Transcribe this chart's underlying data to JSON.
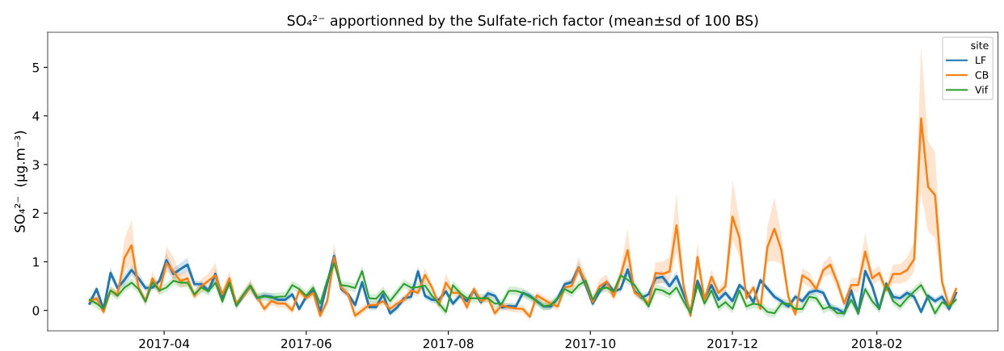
{
  "chart_data": {
    "type": "line",
    "title": "SO₄²⁻ apportionned by the Sulfate-rich factor (mean±sd of 100 BS)",
    "ylabel": "SO₄²⁻  (µg.m⁻³)",
    "legend_title": "site",
    "legend": "top right",
    "grid": false,
    "xlim": [
      "2017-02-10",
      "2018-03-25"
    ],
    "xticks": [
      "2017-04",
      "2017-06",
      "2017-08",
      "2017-10",
      "2017-12",
      "2018-02"
    ],
    "ylim": [
      -0.42,
      5.72
    ],
    "yticks": [
      0,
      1,
      2,
      3,
      4,
      5
    ],
    "x": [
      "2017-02-28",
      "2017-03-03",
      "2017-03-06",
      "2017-03-09",
      "2017-03-12",
      "2017-03-15",
      "2017-03-18",
      "2017-03-21",
      "2017-03-24",
      "2017-03-27",
      "2017-03-30",
      "2017-04-02",
      "2017-04-05",
      "2017-04-08",
      "2017-04-11",
      "2017-04-14",
      "2017-04-17",
      "2017-04-20",
      "2017-04-23",
      "2017-04-26",
      "2017-04-29",
      "2017-05-02",
      "2017-05-05",
      "2017-05-08",
      "2017-05-11",
      "2017-05-14",
      "2017-05-17",
      "2017-05-20",
      "2017-05-23",
      "2017-05-26",
      "2017-05-29",
      "2017-06-01",
      "2017-06-04",
      "2017-06-07",
      "2017-06-10",
      "2017-06-13",
      "2017-06-16",
      "2017-06-19",
      "2017-06-22",
      "2017-06-25",
      "2017-06-28",
      "2017-07-01",
      "2017-07-04",
      "2017-07-07",
      "2017-07-10",
      "2017-07-13",
      "2017-07-16",
      "2017-07-19",
      "2017-07-22",
      "2017-07-25",
      "2017-07-28",
      "2017-07-31",
      "2017-08-03",
      "2017-08-06",
      "2017-08-09",
      "2017-08-12",
      "2017-08-15",
      "2017-08-18",
      "2017-08-21",
      "2017-08-24",
      "2017-08-27",
      "2017-08-30",
      "2017-09-02",
      "2017-09-05",
      "2017-09-08",
      "2017-09-11",
      "2017-09-14",
      "2017-09-17",
      "2017-09-20",
      "2017-09-23",
      "2017-09-26",
      "2017-09-29",
      "2017-10-02",
      "2017-10-05",
      "2017-10-08",
      "2017-10-11",
      "2017-10-14",
      "2017-10-17",
      "2017-10-20",
      "2017-10-23",
      "2017-10-26",
      "2017-10-29",
      "2017-11-01",
      "2017-11-04",
      "2017-11-07",
      "2017-11-10",
      "2017-11-13",
      "2017-11-16",
      "2017-11-19",
      "2017-11-22",
      "2017-11-25",
      "2017-11-28",
      "2017-12-01",
      "2017-12-04",
      "2017-12-07",
      "2017-12-10",
      "2017-12-13",
      "2017-12-16",
      "2017-12-19",
      "2017-12-22",
      "2017-12-25",
      "2017-12-28",
      "2017-12-31",
      "2018-01-03",
      "2018-01-06",
      "2018-01-09",
      "2018-01-12",
      "2018-01-15",
      "2018-01-18",
      "2018-01-21",
      "2018-01-24",
      "2018-01-27",
      "2018-01-30",
      "2018-02-02",
      "2018-02-05",
      "2018-02-08",
      "2018-02-11",
      "2018-02-14",
      "2018-02-17",
      "2018-02-20",
      "2018-02-23",
      "2018-02-26",
      "2018-03-01",
      "2018-03-04",
      "2018-03-07"
    ],
    "series": [
      {
        "name": "LF",
        "color": "#1f77b4",
        "values": [
          0.14,
          0.44,
          0.02,
          0.77,
          0.46,
          0.63,
          0.83,
          0.66,
          0.46,
          0.47,
          0.61,
          1.03,
          0.75,
          0.85,
          0.94,
          0.54,
          0.54,
          0.4,
          0.75,
          0.25,
          0.57,
          0.11,
          0.3,
          0.5,
          0.25,
          0.3,
          0.28,
          0.22,
          0.22,
          0.33,
          0.03,
          0.28,
          0.41,
          -0.03,
          0.55,
          1.12,
          0.44,
          0.33,
          0.11,
          0.58,
          0.07,
          0.07,
          0.33,
          -0.06,
          0.06,
          0.25,
          0.28,
          0.8,
          0.3,
          0.22,
          0.22,
          0.39,
          0.14,
          0.3,
          0.19,
          0.41,
          0.17,
          0.35,
          0.3,
          0.06,
          0.09,
          0.08,
          0.36,
          0.3,
          0.19,
          0.08,
          0.08,
          0.25,
          0.54,
          0.58,
          0.88,
          0.52,
          0.14,
          0.39,
          0.58,
          0.39,
          0.44,
          0.84,
          0.39,
          0.26,
          0.33,
          0.66,
          0.69,
          0.5,
          0.7,
          0.33,
          -0.03,
          0.61,
          0.25,
          0.52,
          0.22,
          0.36,
          0.19,
          0.52,
          0.39,
          0.17,
          0.62,
          0.45,
          0.28,
          0.19,
          0.08,
          0.28,
          0.19,
          0.37,
          0.41,
          0.36,
          0.06,
          0.03,
          -0.06,
          0.41,
          -0.06,
          0.81,
          0.5,
          0.03,
          0.55,
          0.28,
          0.25,
          0.36,
          0.28,
          -0.03,
          0.3,
          0.19,
          0.28,
          0.03,
          0.36
        ],
        "lower": [
          0.07,
          0.37,
          -0.05,
          0.65,
          0.39,
          0.51,
          0.71,
          0.54,
          0.39,
          0.4,
          0.54,
          0.88,
          0.63,
          0.73,
          0.8,
          0.47,
          0.47,
          0.33,
          0.63,
          0.18,
          0.5,
          0.04,
          0.23,
          0.43,
          0.18,
          0.23,
          0.21,
          0.15,
          0.15,
          0.26,
          -0.04,
          0.21,
          0.34,
          -0.1,
          0.48,
          0.97,
          0.37,
          0.26,
          0.04,
          0.51,
          0.0,
          0.0,
          0.26,
          -0.13,
          -0.01,
          0.18,
          0.21,
          0.68,
          0.23,
          0.15,
          0.15,
          0.32,
          0.07,
          0.23,
          0.12,
          0.34,
          0.1,
          0.28,
          0.23,
          -0.01,
          0.02,
          0.01,
          0.29,
          0.23,
          0.12,
          0.01,
          0.01,
          0.18,
          0.47,
          0.51,
          0.76,
          0.45,
          0.07,
          0.32,
          0.51,
          0.32,
          0.37,
          0.72,
          0.32,
          0.19,
          0.26,
          0.54,
          0.57,
          0.43,
          0.58,
          0.26,
          -0.1,
          0.54,
          0.18,
          0.45,
          0.15,
          0.29,
          0.12,
          0.45,
          0.32,
          0.1,
          0.55,
          0.38,
          0.21,
          0.12,
          0.01,
          0.21,
          0.12,
          0.3,
          0.34,
          0.29,
          -0.01,
          -0.04,
          -0.13,
          0.34,
          -0.13,
          0.71,
          0.43,
          -0.04,
          0.48,
          0.21,
          0.18,
          0.29,
          0.21,
          -0.1,
          0.23,
          0.12,
          0.21,
          -0.04,
          0.29
        ],
        "upper": [
          0.21,
          0.51,
          0.09,
          0.89,
          0.53,
          0.75,
          0.95,
          0.78,
          0.53,
          0.54,
          0.68,
          1.18,
          0.87,
          0.97,
          1.08,
          0.61,
          0.61,
          0.47,
          0.87,
          0.32,
          0.64,
          0.18,
          0.37,
          0.57,
          0.32,
          0.37,
          0.35,
          0.29,
          0.29,
          0.4,
          0.1,
          0.35,
          0.48,
          0.04,
          0.62,
          1.27,
          0.51,
          0.4,
          0.18,
          0.65,
          0.14,
          0.14,
          0.4,
          0.01,
          0.13,
          0.32,
          0.35,
          0.92,
          0.37,
          0.29,
          0.29,
          0.46,
          0.21,
          0.37,
          0.26,
          0.48,
          0.24,
          0.42,
          0.37,
          0.13,
          0.16,
          0.15,
          0.43,
          0.37,
          0.26,
          0.15,
          0.15,
          0.32,
          0.61,
          0.65,
          1.0,
          0.59,
          0.21,
          0.46,
          0.65,
          0.46,
          0.51,
          0.96,
          0.46,
          0.33,
          0.4,
          0.78,
          0.81,
          0.57,
          0.82,
          0.4,
          0.04,
          0.68,
          0.32,
          0.59,
          0.29,
          0.43,
          0.26,
          0.59,
          0.46,
          0.24,
          0.69,
          0.52,
          0.35,
          0.26,
          0.15,
          0.35,
          0.26,
          0.44,
          0.48,
          0.43,
          0.13,
          0.1,
          0.01,
          0.48,
          0.01,
          0.91,
          0.57,
          0.1,
          0.62,
          0.35,
          0.32,
          0.43,
          0.35,
          0.04,
          0.37,
          0.26,
          0.35,
          0.1,
          0.43
        ]
      },
      {
        "name": "CB",
        "color": "#ff7f0e",
        "values": [
          0.19,
          0.25,
          -0.03,
          0.41,
          0.33,
          1.08,
          1.34,
          0.47,
          0.19,
          0.66,
          0.4,
          0.97,
          0.8,
          0.6,
          0.66,
          0.3,
          0.5,
          0.61,
          0.72,
          0.33,
          0.66,
          0.14,
          0.3,
          0.5,
          0.28,
          0.03,
          0.19,
          0.14,
          0.14,
          0.0,
          0.41,
          0.25,
          0.36,
          -0.11,
          0.19,
          1.09,
          0.47,
          0.33,
          -0.11,
          0.0,
          0.11,
          0.11,
          0.19,
          0.03,
          0.14,
          0.22,
          0.41,
          0.36,
          0.73,
          0.47,
          0.11,
          0.57,
          0.36,
          0.36,
          0.06,
          0.44,
          0.19,
          0.26,
          -0.06,
          0.11,
          0.06,
          0.04,
          0.03,
          -0.13,
          0.31,
          0.22,
          0.14,
          0.08,
          0.47,
          0.5,
          0.88,
          0.58,
          0.17,
          0.5,
          0.59,
          0.28,
          0.72,
          1.24,
          0.36,
          0.28,
          0.14,
          0.77,
          0.75,
          0.8,
          1.75,
          0.5,
          -0.11,
          1.1,
          0.22,
          0.69,
          0.36,
          0.5,
          1.93,
          1.49,
          0.25,
          0.47,
          0.03,
          1.3,
          1.68,
          1.24,
          0.28,
          -0.08,
          0.72,
          0.63,
          0.44,
          0.83,
          0.94,
          0.58,
          0.14,
          0.52,
          0.52,
          1.21,
          0.66,
          0.77,
          0.41,
          0.75,
          0.75,
          0.83,
          1.05,
          3.95,
          2.54,
          2.37,
          0.58,
          0.08,
          0.44
        ],
        "lower": [
          0.11,
          0.17,
          -0.11,
          0.33,
          0.25,
          0.8,
          0.95,
          0.39,
          0.11,
          0.51,
          0.32,
          0.8,
          0.65,
          0.45,
          0.51,
          0.22,
          0.35,
          0.46,
          0.57,
          0.25,
          0.51,
          0.06,
          0.22,
          0.35,
          0.2,
          -0.05,
          0.11,
          0.06,
          0.06,
          -0.08,
          0.33,
          0.17,
          0.28,
          -0.19,
          0.11,
          0.9,
          0.39,
          0.25,
          -0.19,
          -0.08,
          0.03,
          0.03,
          0.11,
          -0.05,
          0.06,
          0.14,
          0.33,
          0.28,
          0.58,
          0.39,
          0.03,
          0.42,
          0.28,
          0.28,
          -0.02,
          0.36,
          0.11,
          0.18,
          -0.14,
          0.03,
          -0.02,
          -0.04,
          -0.05,
          -0.21,
          0.23,
          0.14,
          0.06,
          0.0,
          0.39,
          0.35,
          0.73,
          0.43,
          0.09,
          0.35,
          0.44,
          0.2,
          0.57,
          0.95,
          0.28,
          0.2,
          0.06,
          0.55,
          0.55,
          0.6,
          1.2,
          0.35,
          -0.19,
          0.85,
          0.14,
          0.54,
          0.28,
          0.35,
          1.45,
          1.1,
          0.17,
          0.39,
          -0.05,
          1.0,
          1.02,
          0.95,
          0.2,
          -0.16,
          0.57,
          0.48,
          0.36,
          0.68,
          0.75,
          0.43,
          0.06,
          0.37,
          0.37,
          0.95,
          0.51,
          0.62,
          0.33,
          0.55,
          0.55,
          0.6,
          0.8,
          2.4,
          1.63,
          1.49,
          0.43,
          0.0,
          0.36
        ],
        "upper": [
          0.27,
          0.33,
          0.05,
          0.49,
          0.41,
          1.48,
          1.84,
          0.55,
          0.27,
          0.81,
          0.48,
          1.32,
          1.1,
          0.75,
          0.81,
          0.38,
          0.65,
          0.76,
          0.98,
          0.41,
          0.81,
          0.22,
          0.38,
          0.65,
          0.36,
          0.11,
          0.27,
          0.22,
          0.22,
          0.08,
          0.49,
          0.33,
          0.44,
          -0.03,
          0.27,
          1.38,
          0.55,
          0.41,
          -0.03,
          0.08,
          0.19,
          0.19,
          0.27,
          0.11,
          0.22,
          0.3,
          0.49,
          0.44,
          0.88,
          0.55,
          0.19,
          0.76,
          0.44,
          0.44,
          0.14,
          0.52,
          0.27,
          0.34,
          0.02,
          0.19,
          0.14,
          0.12,
          0.11,
          -0.05,
          0.39,
          0.3,
          0.22,
          0.16,
          0.55,
          0.65,
          1.1,
          0.73,
          0.25,
          0.65,
          0.74,
          0.36,
          0.87,
          1.68,
          0.44,
          0.36,
          0.22,
          0.99,
          1.0,
          1.1,
          2.4,
          0.65,
          -0.03,
          1.4,
          0.3,
          0.84,
          0.44,
          0.65,
          2.68,
          1.9,
          0.33,
          0.55,
          0.11,
          1.7,
          2.32,
          1.55,
          0.36,
          0.0,
          0.87,
          0.78,
          0.52,
          0.98,
          1.13,
          0.73,
          0.22,
          0.67,
          0.67,
          1.6,
          0.81,
          0.92,
          0.49,
          0.95,
          0.95,
          1.1,
          1.4,
          5.44,
          3.48,
          3.26,
          0.73,
          0.16,
          0.52
        ]
      },
      {
        "name": "Vif",
        "color": "#2ca02c",
        "values": [
          0.22,
          0.14,
          0.03,
          0.41,
          0.3,
          0.47,
          0.57,
          0.44,
          0.18,
          0.58,
          0.41,
          0.47,
          0.61,
          0.57,
          0.57,
          0.33,
          0.47,
          0.39,
          0.57,
          0.18,
          0.57,
          0.09,
          0.33,
          0.51,
          0.26,
          0.29,
          0.26,
          0.28,
          0.29,
          0.52,
          0.44,
          0.3,
          0.47,
          0.14,
          0.61,
          0.97,
          0.52,
          0.5,
          0.46,
          0.81,
          0.25,
          0.24,
          0.4,
          0.19,
          0.37,
          0.55,
          0.47,
          0.48,
          0.51,
          0.3,
          0.14,
          -0.03,
          0.52,
          0.36,
          0.25,
          0.25,
          0.25,
          0.25,
          0.14,
          0.14,
          0.4,
          0.4,
          0.36,
          0.28,
          0.19,
          0.08,
          0.11,
          0.25,
          0.44,
          0.36,
          0.52,
          0.61,
          0.22,
          0.44,
          0.47,
          0.39,
          0.72,
          0.63,
          0.52,
          0.3,
          0.08,
          0.44,
          0.41,
          0.33,
          0.47,
          0.19,
          -0.06,
          0.52,
          0.14,
          0.41,
          0.06,
          0.17,
          0.03,
          0.41,
          0.08,
          0.14,
          0.11,
          -0.03,
          -0.06,
          0.14,
          0.14,
          0.03,
          0.03,
          0.28,
          0.25,
          0.03,
          0.08,
          -0.06,
          -0.06,
          0.22,
          -0.06,
          0.44,
          0.19,
          0.03,
          0.52,
          0.19,
          0.08,
          0.25,
          0.39,
          0.52,
          0.25,
          -0.06,
          0.17,
          0.08,
          0.22
        ],
        "lower": [
          0.13,
          0.05,
          -0.06,
          0.32,
          0.21,
          0.38,
          0.48,
          0.35,
          0.09,
          0.49,
          0.32,
          0.38,
          0.52,
          0.48,
          0.48,
          0.24,
          0.38,
          0.3,
          0.48,
          0.09,
          0.48,
          0.0,
          0.24,
          0.42,
          0.17,
          0.2,
          0.17,
          0.19,
          0.2,
          0.43,
          0.35,
          0.21,
          0.38,
          0.05,
          0.52,
          0.85,
          0.43,
          0.41,
          0.37,
          0.7,
          0.16,
          0.15,
          0.31,
          0.1,
          0.28,
          0.46,
          0.38,
          0.39,
          0.42,
          0.21,
          0.05,
          -0.12,
          0.43,
          0.27,
          0.16,
          0.16,
          0.16,
          0.16,
          0.05,
          0.05,
          0.31,
          0.31,
          0.27,
          0.19,
          0.1,
          -0.01,
          0.02,
          0.16,
          0.35,
          0.27,
          0.43,
          0.52,
          0.13,
          0.35,
          0.38,
          0.3,
          0.63,
          0.54,
          0.43,
          0.21,
          -0.01,
          0.35,
          0.32,
          0.24,
          0.38,
          0.1,
          -0.15,
          0.43,
          0.05,
          0.32,
          -0.03,
          0.08,
          -0.06,
          0.32,
          -0.01,
          0.05,
          0.02,
          -0.12,
          -0.15,
          0.05,
          0.05,
          -0.06,
          -0.06,
          0.19,
          0.16,
          -0.06,
          -0.01,
          -0.15,
          -0.15,
          0.13,
          -0.15,
          0.35,
          0.1,
          -0.06,
          0.43,
          0.1,
          -0.01,
          0.16,
          0.3,
          0.43,
          0.16,
          -0.15,
          0.08,
          -0.01,
          0.13
        ],
        "upper": [
          0.31,
          0.23,
          0.12,
          0.5,
          0.39,
          0.56,
          0.66,
          0.53,
          0.27,
          0.67,
          0.5,
          0.56,
          0.7,
          0.66,
          0.66,
          0.42,
          0.56,
          0.48,
          0.66,
          0.27,
          0.66,
          0.18,
          0.42,
          0.6,
          0.35,
          0.38,
          0.35,
          0.37,
          0.38,
          0.61,
          0.53,
          0.39,
          0.56,
          0.23,
          0.7,
          1.09,
          0.61,
          0.59,
          0.55,
          0.92,
          0.34,
          0.33,
          0.49,
          0.28,
          0.46,
          0.64,
          0.56,
          0.57,
          0.6,
          0.39,
          0.23,
          0.06,
          0.61,
          0.45,
          0.34,
          0.34,
          0.34,
          0.34,
          0.23,
          0.23,
          0.49,
          0.49,
          0.45,
          0.37,
          0.28,
          0.17,
          0.2,
          0.34,
          0.53,
          0.45,
          0.61,
          0.7,
          0.31,
          0.53,
          0.56,
          0.48,
          0.81,
          0.72,
          0.61,
          0.39,
          0.17,
          0.53,
          0.5,
          0.42,
          0.56,
          0.28,
          0.03,
          0.61,
          0.23,
          0.5,
          0.15,
          0.26,
          0.12,
          0.5,
          0.17,
          0.23,
          0.2,
          0.06,
          0.03,
          0.23,
          0.23,
          0.12,
          0.12,
          0.37,
          0.34,
          0.12,
          0.17,
          0.03,
          0.03,
          0.31,
          0.03,
          0.53,
          0.28,
          0.12,
          0.61,
          0.28,
          0.17,
          0.34,
          0.48,
          0.61,
          0.34,
          0.03,
          0.26,
          0.17,
          0.31
        ]
      }
    ]
  }
}
